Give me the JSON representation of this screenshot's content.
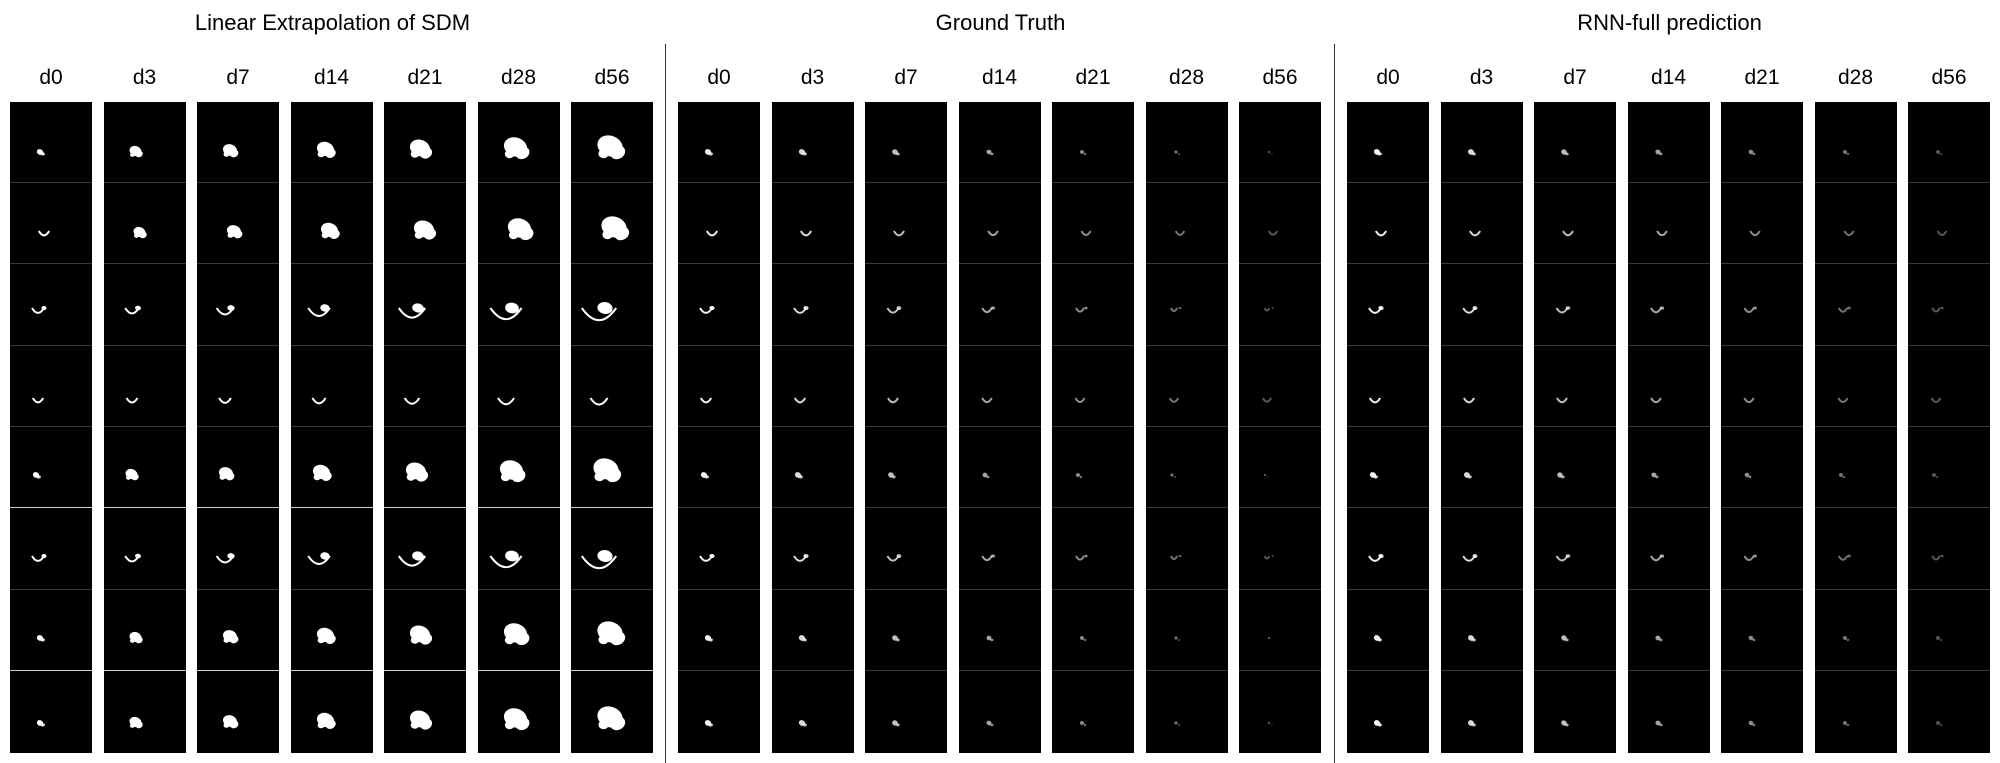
{
  "panels": [
    {
      "title": "Linear Extrapolation of SDM",
      "labels": [
        "d0",
        "d3",
        "d7",
        "d14",
        "d21",
        "d28",
        "d56"
      ]
    },
    {
      "title": "Ground Truth",
      "labels": [
        "d0",
        "d3",
        "d7",
        "d14",
        "d21",
        "d28",
        "d56"
      ]
    },
    {
      "title": "RNN-full prediction",
      "labels": [
        "d0",
        "d3",
        "d7",
        "d14",
        "d21",
        "d28",
        "d56"
      ]
    }
  ]
}
